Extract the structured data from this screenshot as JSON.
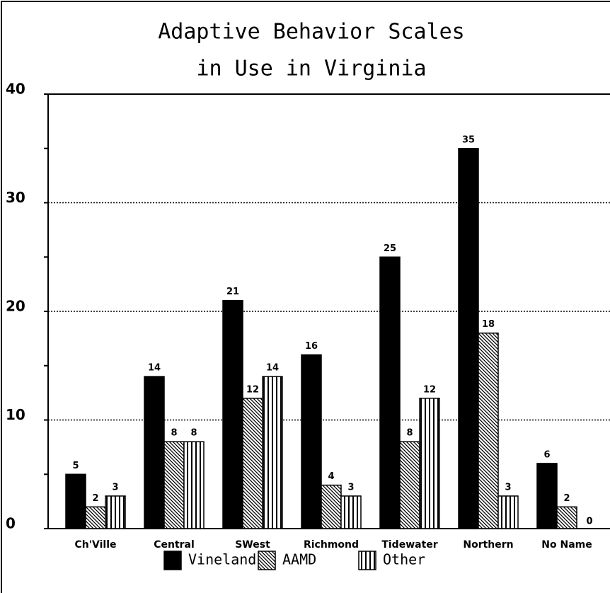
{
  "chart_data": {
    "type": "bar",
    "title": "Adaptive Behavior Scales",
    "subtitle": "in Use in Virginia",
    "categories": [
      "Ch'Ville",
      "Central",
      "SWest",
      "Richmond",
      "Tidewater",
      "Northern",
      "No Name"
    ],
    "series": [
      {
        "name": "Vineland",
        "color": "#000000",
        "pattern": "solid",
        "values": [
          5,
          14,
          21,
          16,
          25,
          35,
          6
        ]
      },
      {
        "name": "AAMD",
        "color": "#000000",
        "pattern": "hatch",
        "values": [
          2,
          8,
          12,
          4,
          8,
          18,
          2
        ]
      },
      {
        "name": "Other",
        "color": "#000000",
        "pattern": "vstripe",
        "values": [
          3,
          8,
          14,
          3,
          12,
          3,
          0
        ]
      }
    ],
    "ylim": [
      0,
      40
    ],
    "yticks": [
      0,
      10,
      20,
      30,
      40
    ],
    "minor_yticks": [
      5,
      15,
      25,
      35
    ],
    "grid": true,
    "legend": "bottom"
  }
}
